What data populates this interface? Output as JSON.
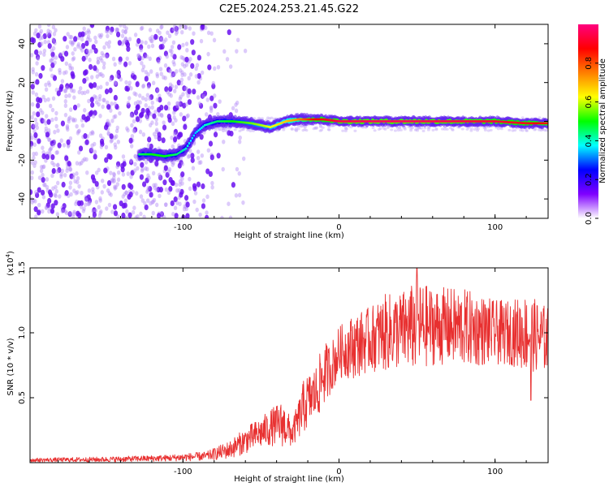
{
  "figure": {
    "title": "C2E5.2024.253.21.45.G22",
    "colorbar": {
      "label": "Normalized spectral amplitude",
      "ticks": [
        "0.0",
        "0.2",
        "0.4",
        "0.6",
        "0.8"
      ],
      "tick_values": [
        0.0,
        0.2,
        0.4,
        0.6,
        0.8
      ],
      "range": [
        0,
        1
      ],
      "colormap": [
        "#ffffff",
        "#7f00ff",
        "#0000ff",
        "#00ffff",
        "#00ff00",
        "#ffff00",
        "#ff7f00",
        "#ff0000",
        "#ff007f"
      ]
    }
  },
  "chart_data": [
    {
      "type": "heatmap",
      "title": "",
      "xlabel": "Height of straight line (km)",
      "ylabel": "Frequency (Hz)",
      "xlim": [
        -198,
        134
      ],
      "ylim": [
        -50,
        50
      ],
      "x_ticks": [
        -100,
        0,
        100
      ],
      "x_tick_labels": [
        "-100",
        "0",
        "100"
      ],
      "y_ticks": [
        -40,
        -20,
        0,
        20,
        40
      ],
      "y_tick_labels": [
        "-40",
        "-20",
        "0",
        "20",
        "40"
      ],
      "signal_trace": {
        "x": [
          -128,
          -120,
          -112,
          -104,
          -98,
          -92,
          -86,
          -78,
          -68,
          -56,
          -44,
          -34,
          -26,
          -18,
          -10,
          0,
          20,
          40,
          60,
          80,
          100,
          120,
          134
        ],
        "y": [
          -17,
          -17,
          -18,
          -17,
          -14,
          -6,
          -2,
          0,
          0,
          -1,
          -3,
          0,
          1,
          1,
          1,
          0,
          0,
          0,
          0,
          0,
          0,
          -1,
          -1
        ],
        "amplitude": [
          0.45,
          0.5,
          0.5,
          0.45,
          0.4,
          0.35,
          0.4,
          0.45,
          0.5,
          0.55,
          0.62,
          0.68,
          0.75,
          0.85,
          0.9,
          0.95,
          0.97,
          0.97,
          0.96,
          0.95,
          0.93,
          0.9,
          0.85
        ]
      },
      "noise_region": {
        "x_range": [
          -198,
          -80
        ],
        "y_range": [
          -50,
          50
        ],
        "amplitude": 0.05
      }
    },
    {
      "type": "line",
      "title": "",
      "xlabel": "Height of straight line (km)",
      "ylabel": "SNR (10 * v/v)",
      "scale_label": "(x10",
      "scale_exponent": "4",
      "scale_close": ")",
      "xlim": [
        -198,
        134
      ],
      "ylim": [
        0,
        1.5
      ],
      "x_ticks": [
        -100,
        0,
        100
      ],
      "x_tick_labels": [
        "-100",
        "0",
        "100"
      ],
      "y_ticks": [
        0.5,
        1.0,
        1.5
      ],
      "y_tick_labels": [
        "0.5",
        "1.0",
        "1.5"
      ],
      "series": [
        {
          "name": "SNR",
          "color": "#e83030",
          "envelope": {
            "x": [
              -198,
              -150,
              -110,
              -85,
              -70,
              -60,
              -50,
              -42,
              -36,
              -30,
              -26,
              -22,
              -18,
              -14,
              -10,
              -6,
              -2,
              0,
              10,
              20,
              30,
              40,
              50,
              60,
              70,
              80,
              90,
              100,
              110,
              120,
              134
            ],
            "mean": [
              0.02,
              0.025,
              0.035,
              0.05,
              0.1,
              0.17,
              0.23,
              0.28,
              0.3,
              0.22,
              0.33,
              0.45,
              0.5,
              0.55,
              0.68,
              0.72,
              0.8,
              0.85,
              0.9,
              0.95,
              1.0,
              1.02,
              1.05,
              1.05,
              1.05,
              1.04,
              1.02,
              1.0,
              1.0,
              1.0,
              0.95
            ],
            "spread": [
              0.015,
              0.02,
              0.025,
              0.035,
              0.07,
              0.1,
              0.12,
              0.15,
              0.18,
              0.1,
              0.15,
              0.22,
              0.2,
              0.22,
              0.25,
              0.2,
              0.2,
              0.2,
              0.25,
              0.25,
              0.3,
              0.3,
              0.35,
              0.3,
              0.3,
              0.3,
              0.28,
              0.25,
              0.25,
              0.3,
              0.25
            ]
          },
          "peak": {
            "x": 50,
            "y": 1.5
          },
          "dip": {
            "x": 123,
            "y": 0.48
          }
        }
      ]
    }
  ]
}
